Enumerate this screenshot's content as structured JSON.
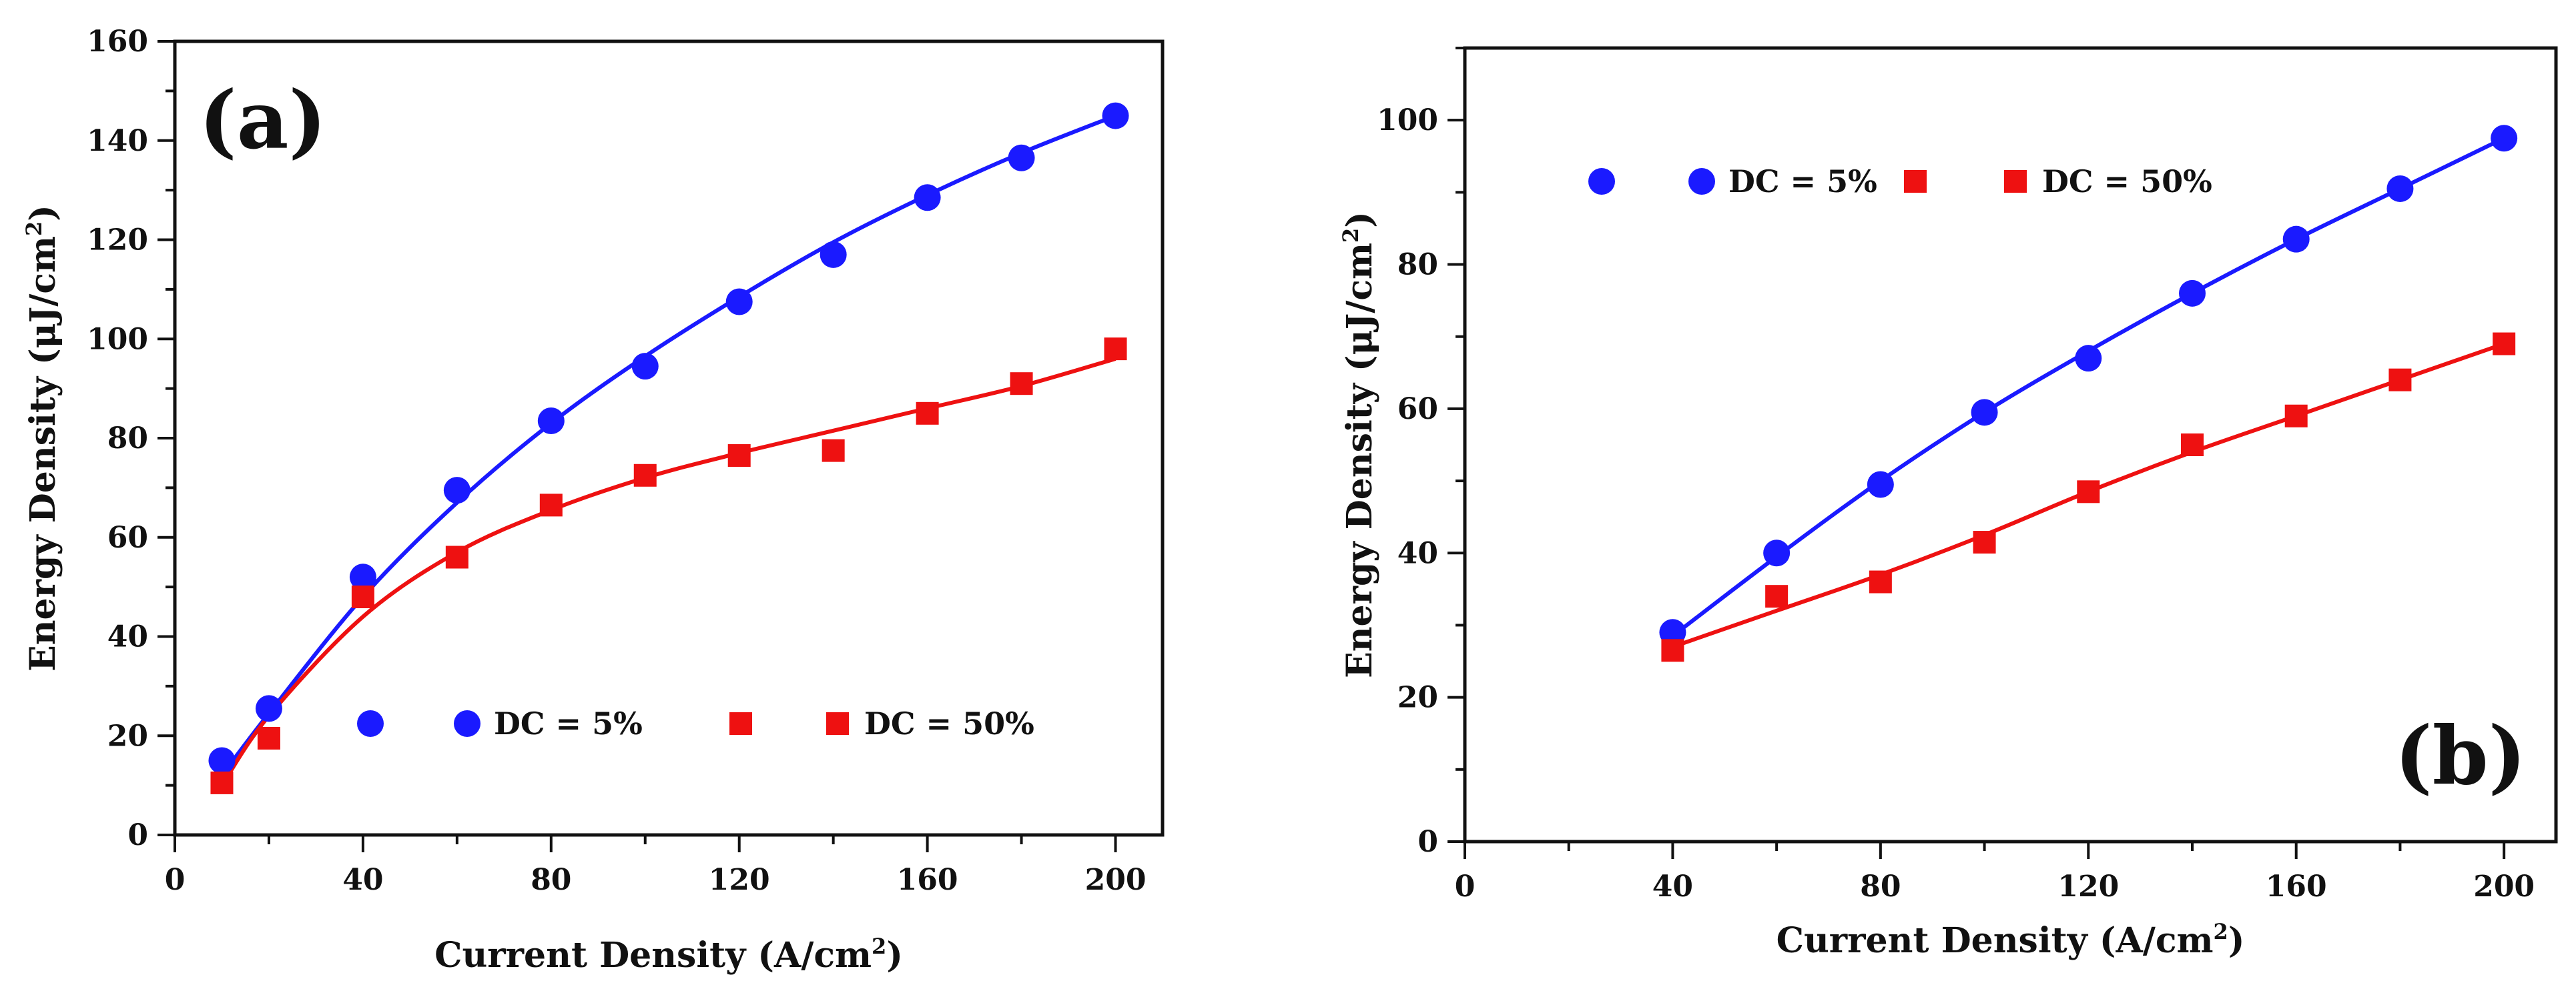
{
  "chart_data": [
    {
      "type": "scatter",
      "panel_label": "(a)",
      "xlabel": "Current Density (A/cm",
      "xlabel_sup": "2",
      "xlabel_end": ")",
      "ylabel": "Energy Density (μJ/cm",
      "ylabel_sup": "2",
      "ylabel_end": ")",
      "xlim": [
        0,
        210
      ],
      "ylim": [
        0,
        160
      ],
      "xticks": [
        0,
        40,
        80,
        120,
        160,
        200
      ],
      "yticks": [
        0,
        20,
        40,
        60,
        80,
        100,
        120,
        140,
        160
      ],
      "x_minor_step": 20,
      "legend_position": "bottom-right",
      "series": [
        {
          "name": "DC = 5%",
          "marker": "circle",
          "color": "#1a1aff",
          "x": [
            10,
            20,
            40,
            60,
            80,
            100,
            120,
            140,
            160,
            180,
            200
          ],
          "values": [
            15,
            25.5,
            52,
            69.5,
            83.5,
            94.5,
            107.5,
            117,
            128.5,
            136.5,
            145
          ],
          "fit": [
            12,
            24.5,
            48,
            67,
            83,
            96.5,
            108.5,
            119.5,
            129,
            137.5,
            145
          ]
        },
        {
          "name": "DC = 50%",
          "marker": "square",
          "color": "#ee1111",
          "x": [
            10,
            20,
            40,
            60,
            80,
            100,
            120,
            140,
            160,
            180,
            200
          ],
          "values": [
            10.5,
            19.5,
            48,
            56,
            66.5,
            72.5,
            76.5,
            77.5,
            85,
            91,
            98
          ],
          "fit": [
            10,
            24,
            44,
            57,
            65.5,
            72,
            77,
            81.5,
            86,
            90.5,
            96
          ]
        }
      ]
    },
    {
      "type": "scatter",
      "panel_label": "(b)",
      "xlabel": "Current Density (A/cm",
      "xlabel_sup": "2",
      "xlabel_end": ")",
      "ylabel": "Energy Density (μJ/cm",
      "ylabel_sup": "2",
      "ylabel_end": ")",
      "xlim": [
        0,
        210
      ],
      "ylim": [
        0,
        110
      ],
      "xticks": [
        0,
        40,
        80,
        120,
        160,
        200
      ],
      "yticks": [
        0,
        20,
        40,
        60,
        80,
        100
      ],
      "x_minor_step": 20,
      "legend_position": "top-left",
      "series": [
        {
          "name": "DC = 5%",
          "marker": "circle",
          "color": "#1a1aff",
          "x": [
            40,
            60,
            80,
            100,
            120,
            140,
            160,
            180,
            200
          ],
          "values": [
            29,
            40,
            49.5,
            59.5,
            67,
            76,
            83.5,
            90.5,
            97.5
          ],
          "fit": [
            28.5,
            39.5,
            50,
            59.5,
            68,
            76,
            83.5,
            90.5,
            97.5
          ]
        },
        {
          "name": "DC = 50%",
          "marker": "square",
          "color": "#ee1111",
          "x": [
            40,
            60,
            80,
            100,
            120,
            140,
            160,
            180,
            200
          ],
          "values": [
            26.5,
            34,
            36,
            41.5,
            48.5,
            55,
            59,
            64,
            69
          ],
          "fit": [
            27,
            32,
            37,
            42.5,
            48.5,
            54,
            59,
            64,
            69
          ]
        }
      ]
    }
  ]
}
